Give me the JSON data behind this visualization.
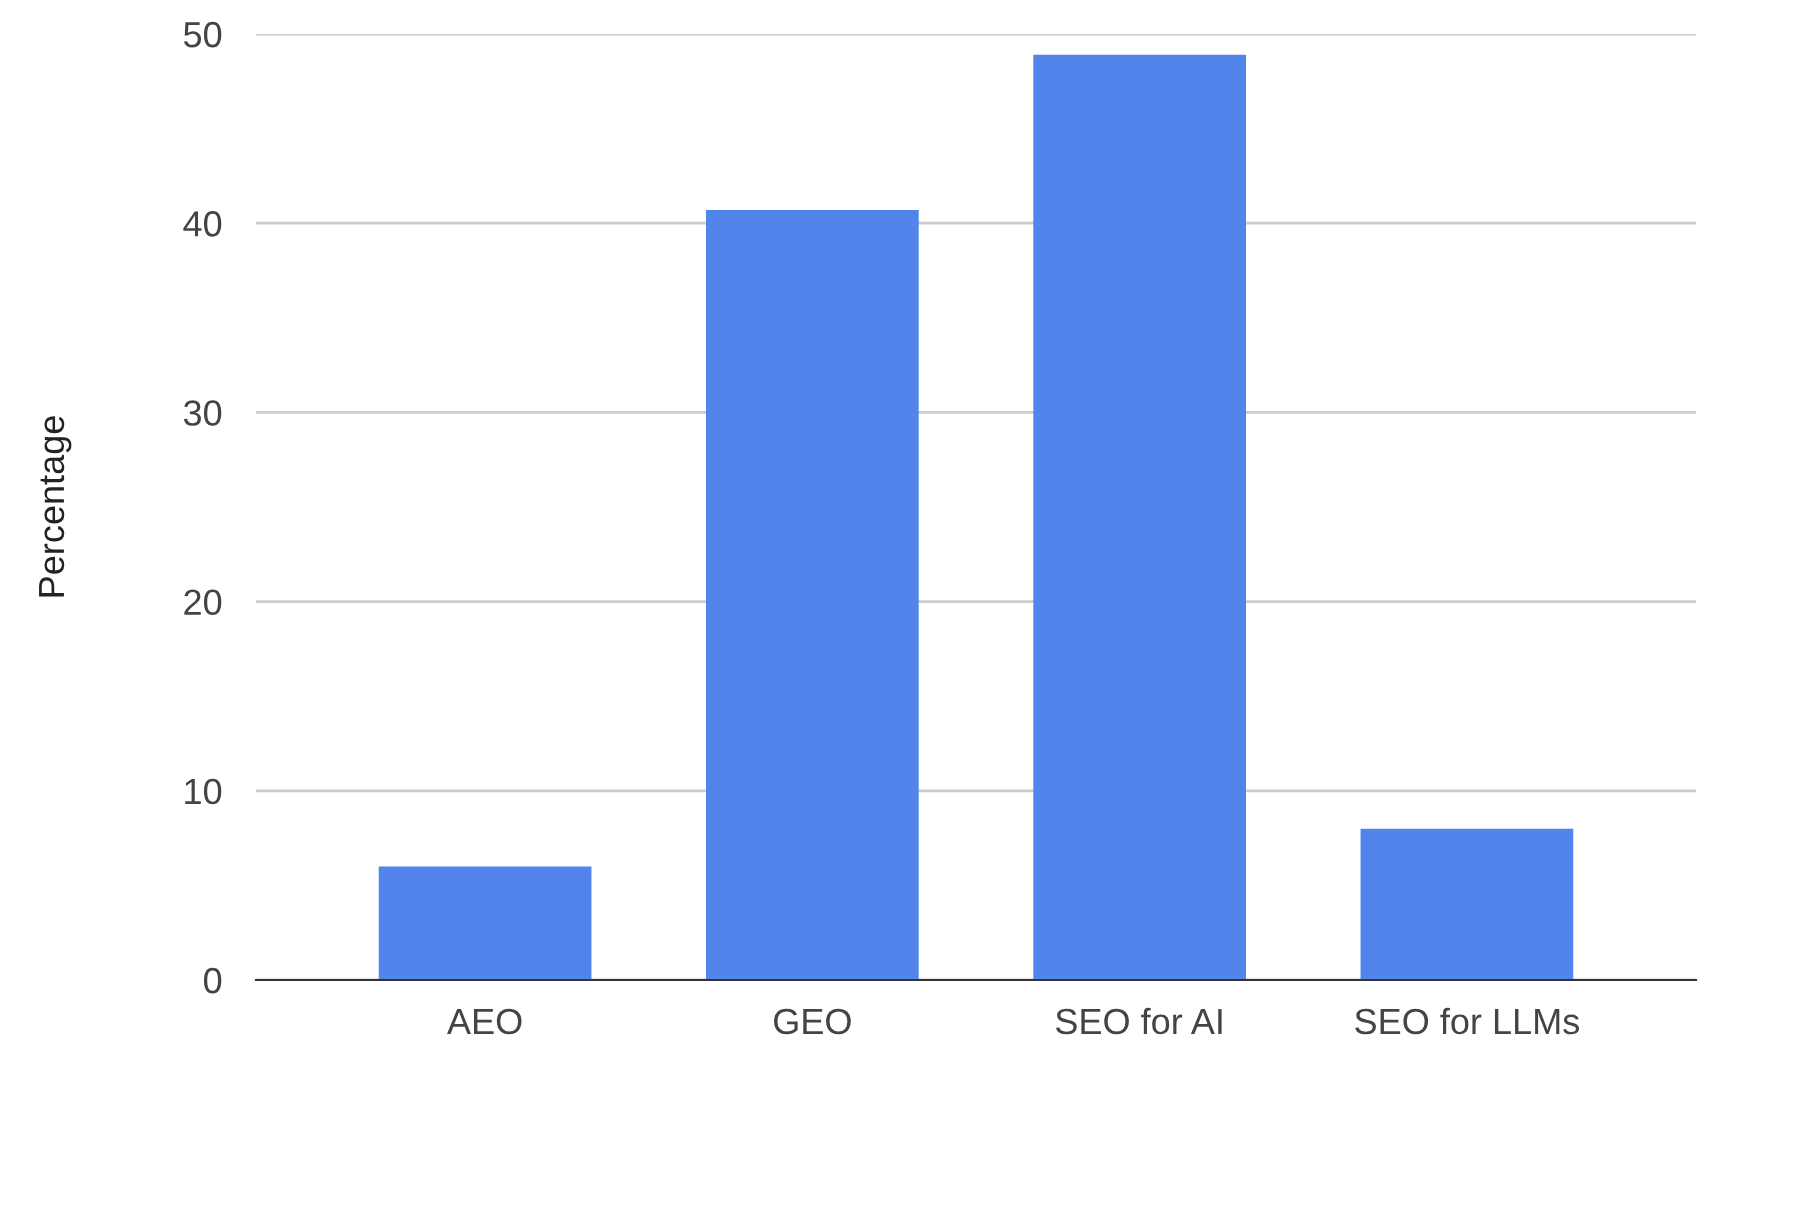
{
  "chart_data": {
    "type": "bar",
    "ylabel": "Percentage",
    "categories": [
      "AEO",
      "GEO",
      "SEO for AI",
      "SEO for LLMs"
    ],
    "values": [
      6,
      40.7,
      48.9,
      8
    ],
    "color": "#5185ec",
    "ylim": [
      0,
      50
    ],
    "yticks": [
      0,
      10,
      20,
      30,
      40,
      50
    ],
    "grid": "y",
    "legend": false
  }
}
